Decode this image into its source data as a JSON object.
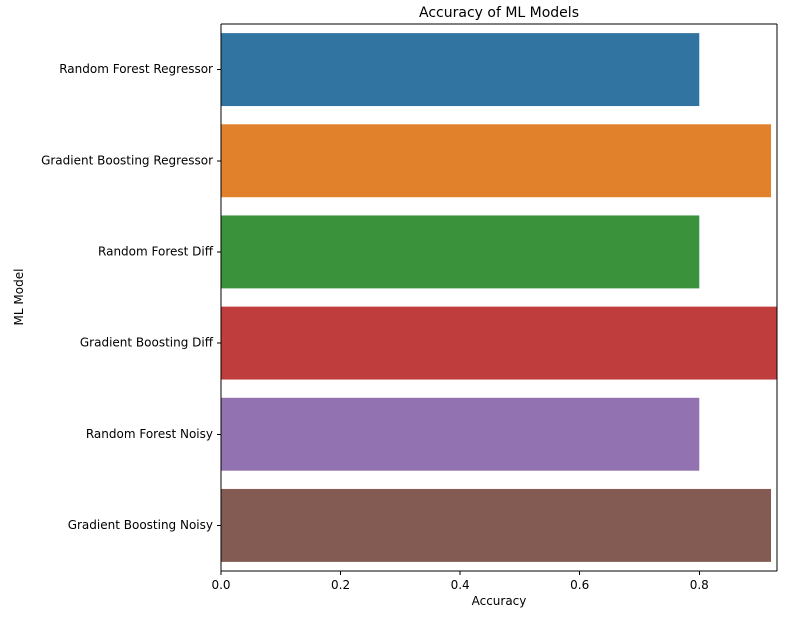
{
  "chart_data": {
    "type": "bar",
    "orientation": "horizontal",
    "title": "Accuracy of ML Models",
    "xlabel": "Accuracy",
    "ylabel": "ML Model",
    "categories": [
      "Random Forest Regressor",
      "Gradient Boosting Regressor",
      "Random Forest Diff",
      "Gradient Boosting Diff",
      "Random Forest Noisy",
      "Gradient Boosting Noisy"
    ],
    "values": [
      0.8,
      0.92,
      0.8,
      0.93,
      0.8,
      0.92
    ],
    "colors": [
      "#3274a1",
      "#e1812c",
      "#3a923a",
      "#c03d3e",
      "#9372b2",
      "#845b53"
    ],
    "xlim": [
      0,
      0.93
    ],
    "xticks": [
      0.0,
      0.2,
      0.4,
      0.6,
      0.8
    ],
    "xtick_labels": [
      "0.0",
      "0.2",
      "0.4",
      "0.6",
      "0.8"
    ],
    "grid": false,
    "legend": "none"
  }
}
